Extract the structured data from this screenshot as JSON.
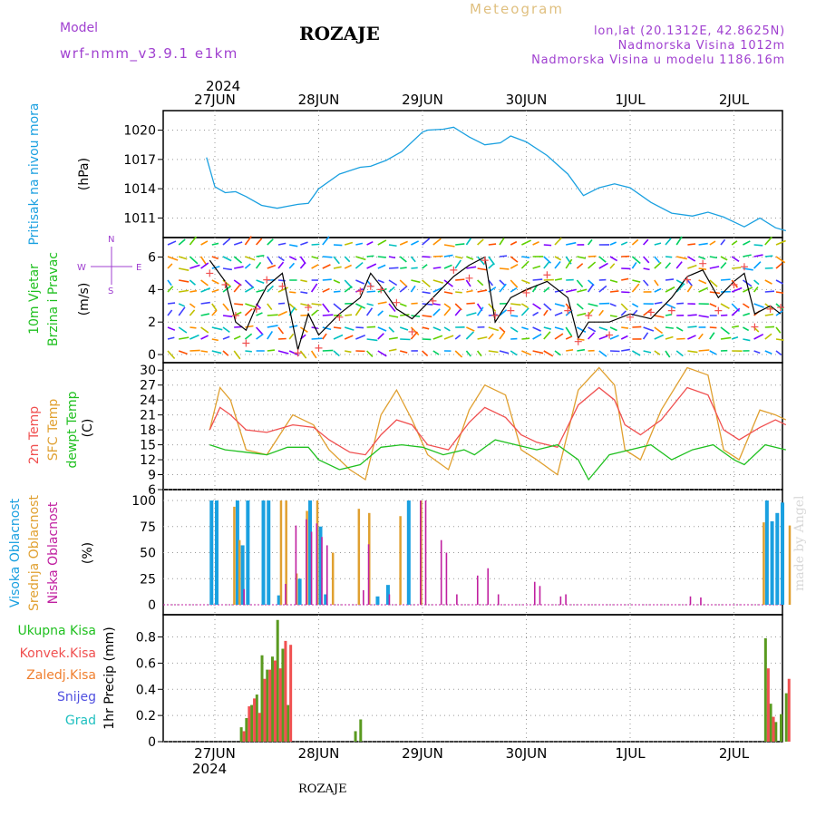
{
  "header": {
    "model_label": "Model",
    "model_name": "wrf-nmm_v3.9.1 e1km",
    "location": "ROZAJE",
    "meteogram": "Meteogram",
    "lonlat": "lon,lat (20.1312E, 42.8625N)",
    "altitude": "Nadmorska Visina 1012m",
    "model_altitude": "Nadmorska Visina u modelu 1186.16m",
    "year_top": "2024",
    "year_bottom": "2024",
    "footer_location": "ROZAJE",
    "watermark": "made by Angel"
  },
  "colors": {
    "pressure": "#1aa0e0",
    "temp2m": "#f05050",
    "sfc": "#e0a030",
    "dewpt": "#20c020",
    "high_cloud": "#1aa0e0",
    "mid_cloud": "#e0a030",
    "low_cloud": "#c020a0",
    "total_precip": "#5a9a20",
    "conv_precip": "#f05050",
    "frozen": "#f08030",
    "snow": "#5050e0",
    "graupel": "#20c0c0",
    "purple_text": "#a040d0",
    "wind_speed": "#000000",
    "gust": "#f05050"
  },
  "days": [
    "27JUN",
    "28JUN",
    "29JUN",
    "30JUN",
    "1JUL",
    "2JUL"
  ],
  "panels": {
    "pressure": {
      "y_label_1": "Pritisak na nivou mora",
      "y_label_2": "(hPa)"
    },
    "wind": {
      "y_label_1": "10m Vjetar",
      "y_label_2": "Brzina i Pravac",
      "y_label_3": "(m/s)",
      "compass_n": "N",
      "compass_w": "W",
      "compass_e": "E",
      "compass_s": "S"
    },
    "temp": {
      "y_label_1": "2m Temp",
      "y_label_2": "SFC Temp",
      "y_label_3": "dewpt Temp",
      "y_label_4": "(C)"
    },
    "cloud": {
      "y_label_1": "Visoka Oblacnost",
      "y_label_2": "Srednja Oblacnost",
      "y_label_3": "Niska Oblacnost",
      "y_label_4": "(%)"
    },
    "precip": {
      "y_label": "1hr Precip (mm)",
      "legend": [
        "Ukupna Kisa",
        "Konvek.Kisa",
        "Zaledj.Kisa",
        "Snijeg",
        "Grad"
      ]
    }
  },
  "chart_data": [
    {
      "type": "line",
      "series": [
        {
          "name": "Pritisak na nivou mora",
          "x": [
            -0.08,
            0.0,
            0.1,
            0.2,
            0.3,
            0.45,
            0.6,
            0.7,
            0.8,
            0.9,
            1.0,
            1.2,
            1.4,
            1.5,
            1.65,
            1.8,
            2.0,
            2.05,
            2.2,
            2.3,
            2.45,
            2.6,
            2.75,
            2.85,
            3.0,
            3.2,
            3.4,
            3.55,
            3.7,
            3.85,
            4.0,
            4.2,
            4.4,
            4.6,
            4.75,
            4.9,
            5.1,
            5.25,
            5.4,
            5.5
          ],
          "values": [
            1017.2,
            1014.2,
            1013.6,
            1013.7,
            1013.2,
            1012.3,
            1012.0,
            1012.2,
            1012.4,
            1012.5,
            1014.0,
            1015.5,
            1016.2,
            1016.3,
            1016.9,
            1017.8,
            1019.8,
            1020.0,
            1020.1,
            1020.3,
            1019.3,
            1018.5,
            1018.7,
            1019.4,
            1018.8,
            1017.4,
            1015.5,
            1013.3,
            1014.1,
            1014.5,
            1014.1,
            1012.6,
            1011.5,
            1011.2,
            1011.6,
            1011.1,
            1010.1,
            1011.0,
            1010.0,
            1009.7
          ]
        }
      ],
      "ylim": [
        1009,
        1022
      ],
      "yticks": [
        1011,
        1014,
        1017,
        1020
      ]
    },
    {
      "type": "line",
      "series": [
        {
          "name": "wind_speed",
          "x": [
            -0.05,
            0.1,
            0.2,
            0.3,
            0.4,
            0.5,
            0.65,
            0.8,
            0.9,
            1.0,
            1.2,
            1.4,
            1.5,
            1.6,
            1.75,
            1.9,
            2.1,
            2.3,
            2.45,
            2.6,
            2.7,
            2.85,
            3.0,
            3.2,
            3.4,
            3.5,
            3.6,
            3.8,
            4.0,
            4.2,
            4.4,
            4.55,
            4.7,
            4.85,
            5.0,
            5.1,
            5.2,
            5.35,
            5.45
          ],
          "values": [
            5.8,
            4.5,
            2.0,
            1.5,
            3.0,
            4.2,
            5.0,
            0.3,
            2.5,
            1.2,
            2.5,
            3.5,
            5.0,
            4.2,
            2.8,
            2.2,
            3.5,
            4.8,
            5.5,
            6.0,
            2.0,
            3.5,
            4.0,
            4.5,
            3.5,
            1.0,
            2.0,
            2.0,
            2.5,
            2.2,
            3.5,
            4.8,
            5.2,
            3.5,
            4.5,
            5.0,
            2.5,
            3.0,
            2.5
          ]
        }
      ],
      "ylim": [
        -0.5,
        7.2
      ],
      "yticks": [
        0,
        2,
        4,
        6
      ]
    },
    {
      "type": "line",
      "series": [
        {
          "name": "2m Temp",
          "x": [
            -0.05,
            0.05,
            0.15,
            0.3,
            0.5,
            0.75,
            0.95,
            1.1,
            1.3,
            1.45,
            1.6,
            1.75,
            1.9,
            2.05,
            2.25,
            2.45,
            2.6,
            2.8,
            2.95,
            3.1,
            3.3,
            3.5,
            3.7,
            3.85,
            3.95,
            4.1,
            4.3,
            4.55,
            4.75,
            4.9,
            5.05,
            5.25,
            5.4,
            5.5
          ],
          "values": [
            18,
            22.5,
            21,
            18,
            17.5,
            19,
            18.5,
            16,
            13.5,
            13.0,
            17,
            20,
            19,
            15,
            14,
            19.5,
            22.5,
            20.5,
            17,
            15.5,
            14.5,
            23,
            26.5,
            24,
            19,
            17,
            20,
            26.5,
            25,
            18,
            16,
            18.5,
            20,
            19
          ]
        },
        {
          "name": "SFC Temp",
          "x": [
            -0.05,
            0.05,
            0.15,
            0.3,
            0.5,
            0.75,
            0.95,
            1.1,
            1.3,
            1.45,
            1.6,
            1.75,
            1.9,
            2.05,
            2.25,
            2.45,
            2.6,
            2.8,
            2.95,
            3.1,
            3.3,
            3.5,
            3.7,
            3.85,
            3.95,
            4.1,
            4.3,
            4.55,
            4.75,
            4.9,
            5.05,
            5.25,
            5.4,
            5.5
          ],
          "values": [
            18,
            26.5,
            24,
            14,
            13,
            21,
            19,
            14,
            10,
            8,
            21,
            26,
            20,
            13,
            10,
            22,
            27,
            25,
            14,
            12,
            9,
            26,
            30.5,
            27,
            14,
            12,
            22,
            30.5,
            29,
            14,
            12,
            22,
            21,
            20
          ]
        },
        {
          "name": "dewpt Temp",
          "x": [
            -0.05,
            0.1,
            0.3,
            0.5,
            0.7,
            0.9,
            1.0,
            1.2,
            1.4,
            1.6,
            1.8,
            2.0,
            2.2,
            2.4,
            2.5,
            2.7,
            2.9,
            3.1,
            3.3,
            3.5,
            3.6,
            3.8,
            4.0,
            4.2,
            4.4,
            4.6,
            4.8,
            5.0,
            5.1,
            5.3,
            5.5
          ],
          "values": [
            15,
            14,
            13.5,
            13,
            14.5,
            14.5,
            12,
            10,
            11,
            14.5,
            15,
            14.5,
            13,
            14,
            13,
            16,
            15,
            14,
            15,
            12,
            8,
            13,
            14,
            15,
            12,
            14,
            15,
            12,
            11,
            15,
            14
          ]
        }
      ],
      "ylim": [
        6,
        31.5
      ],
      "yticks": [
        6,
        9,
        12,
        15,
        18,
        21,
        24,
        27,
        30
      ]
    },
    {
      "type": "bar",
      "series": [
        {
          "name": "Visoka Oblacnost",
          "x": [
            -0.05,
            0.0,
            0.2,
            0.25,
            0.3,
            0.45,
            0.5,
            0.6,
            0.8,
            0.9,
            1.0,
            1.05,
            1.55,
            1.65,
            1.85,
            5.3,
            5.35,
            5.4,
            5.45
          ],
          "values": [
            100,
            100,
            100,
            57,
            100,
            100,
            100,
            9,
            25,
            100,
            75,
            10,
            8,
            19,
            100,
            100,
            80,
            88,
            98
          ]
        },
        {
          "name": "Srednja Oblacnost",
          "x": [
            0.15,
            0.2,
            0.6,
            0.65,
            0.75,
            0.85,
            0.95,
            1.1,
            1.35,
            1.45,
            1.75,
            1.95,
            5.25,
            5.5
          ],
          "values": [
            94,
            62,
            100,
            100,
            30,
            90,
            100,
            50,
            92,
            88,
            85,
            100,
            79,
            76
          ]
        },
        {
          "name": "Niska Oblacnost",
          "x": [
            0.3,
            0.7,
            0.8,
            0.9,
            0.95,
            1.0,
            1.05,
            1.1,
            1.45,
            1.5,
            1.7,
            2.0,
            2.05,
            2.2,
            2.25,
            2.35,
            2.55,
            2.65,
            2.75,
            3.1,
            3.15,
            3.35,
            3.4,
            4.6,
            4.7
          ],
          "values": [
            15,
            20,
            76,
            82,
            70,
            78,
            65,
            57,
            14,
            58,
            10,
            100,
            100,
            62,
            50,
            10,
            28,
            35,
            10,
            22,
            18,
            8,
            10,
            8,
            7
          ]
        }
      ],
      "ylim": [
        0,
        100
      ],
      "yticks": [
        0,
        25,
        50,
        75,
        100
      ]
    },
    {
      "type": "bar",
      "series": [
        {
          "name": "Ukupna Kisa",
          "x": [
            0.25,
            0.3,
            0.35,
            0.4,
            0.45,
            0.5,
            0.55,
            0.6,
            0.65,
            0.7,
            1.35,
            1.4,
            5.3,
            5.35,
            5.4,
            5.45,
            5.5
          ],
          "values": [
            0.11,
            0.18,
            0.28,
            0.36,
            0.66,
            0.55,
            0.65,
            0.93,
            0.71,
            0.28,
            0.08,
            0.17,
            0.79,
            0.29,
            0.15,
            0.21,
            0.37
          ]
        },
        {
          "name": "Konvek.Kisa",
          "x": [
            0.25,
            0.3,
            0.35,
            0.4,
            0.45,
            0.5,
            0.55,
            0.6,
            0.65,
            0.7,
            5.3,
            5.35,
            5.5
          ],
          "values": [
            0.08,
            0.27,
            0.33,
            0.22,
            0.48,
            0.55,
            0.62,
            0.56,
            0.77,
            0.74,
            0.56,
            0.19,
            0.48
          ]
        }
      ],
      "ylim": [
        0,
        0.97
      ],
      "yticks": [
        0,
        0.2,
        0.4,
        0.6,
        0.8
      ]
    }
  ]
}
